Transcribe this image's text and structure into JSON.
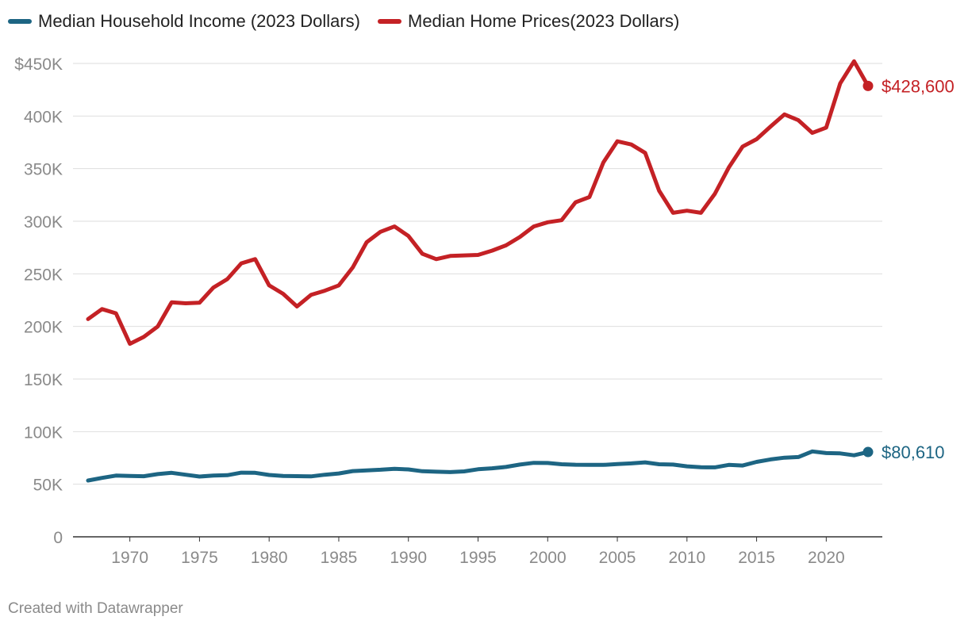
{
  "chart_data": {
    "type": "line",
    "title": "",
    "xlabel": "",
    "ylabel": "",
    "xlim": [
      1967,
      2023
    ],
    "ylim": [
      0,
      450000
    ],
    "x_ticks": [
      1970,
      1975,
      1980,
      1985,
      1990,
      1995,
      2000,
      2005,
      2010,
      2015,
      2020
    ],
    "x_tick_labels": [
      "1970",
      "1975",
      "1980",
      "1985",
      "1990",
      "1995",
      "2000",
      "2005",
      "2010",
      "2015",
      "2020"
    ],
    "y_ticks": [
      0,
      50000,
      100000,
      150000,
      200000,
      250000,
      300000,
      350000,
      400000,
      450000
    ],
    "y_tick_labels": [
      "0",
      "50K",
      "100K",
      "150K",
      "200K",
      "250K",
      "300K",
      "350K",
      "400K",
      "$450K"
    ],
    "grid": true,
    "legend_position": "top-left",
    "x": [
      1967,
      1968,
      1969,
      1970,
      1971,
      1972,
      1973,
      1974,
      1975,
      1976,
      1977,
      1978,
      1979,
      1980,
      1981,
      1982,
      1983,
      1984,
      1985,
      1986,
      1987,
      1988,
      1989,
      1990,
      1991,
      1992,
      1993,
      1994,
      1995,
      1996,
      1997,
      1998,
      1999,
      2000,
      2001,
      2002,
      2003,
      2004,
      2005,
      2006,
      2007,
      2008,
      2009,
      2010,
      2011,
      2012,
      2013,
      2014,
      2015,
      2016,
      2017,
      2018,
      2019,
      2020,
      2021,
      2022,
      2023
    ],
    "series": [
      {
        "name": "Median Household Income (2023 Dollars)",
        "color": "#1d6583",
        "end_label": "$80,610",
        "values": [
          53500,
          56000,
          58200,
          57900,
          57600,
          59600,
          60800,
          59000,
          57300,
          58300,
          58600,
          61000,
          60800,
          58800,
          57800,
          57700,
          57400,
          59000,
          60200,
          62500,
          63200,
          63800,
          64700,
          64100,
          62300,
          61900,
          61500,
          62200,
          64200,
          65100,
          66400,
          68700,
          70300,
          70200,
          69000,
          68500,
          68400,
          68400,
          69100,
          69800,
          70800,
          69000,
          68700,
          67000,
          66100,
          66000,
          68400,
          67800,
          71200,
          73600,
          75200,
          75800,
          81200,
          79600,
          79300,
          77500,
          80610
        ]
      },
      {
        "name": "Median Home Prices(2023 Dollars)",
        "color": "#c42125",
        "end_label": "$428,600",
        "values": [
          207000,
          216500,
          212500,
          183500,
          190000,
          200000,
          223000,
          222000,
          222500,
          237000,
          245000,
          260000,
          264000,
          239000,
          231000,
          219000,
          230000,
          234000,
          239000,
          256000,
          280000,
          290000,
          295000,
          286000,
          269000,
          264000,
          267000,
          267500,
          268000,
          272000,
          277000,
          285000,
          295000,
          299000,
          301000,
          318000,
          323000,
          356000,
          376000,
          373000,
          365000,
          329000,
          308000,
          310000,
          308000,
          326000,
          351000,
          371000,
          378000,
          390000,
          401500,
          396000,
          384000,
          389000,
          431000,
          452000,
          428600
        ]
      }
    ]
  },
  "legend": {
    "items": [
      {
        "label": "Median Household Income (2023 Dollars)",
        "color": "#1d6583"
      },
      {
        "label": "Median Home Prices(2023 Dollars)",
        "color": "#c42125"
      }
    ]
  },
  "footer": {
    "credit": "Created with Datawrapper"
  }
}
